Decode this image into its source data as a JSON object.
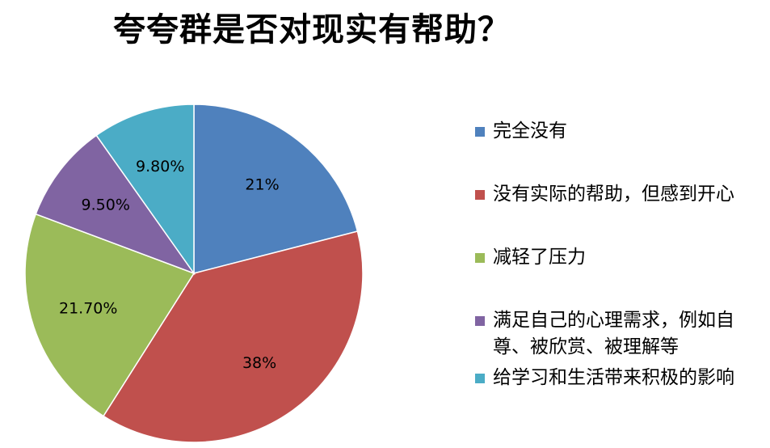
{
  "title": "夸夸群是否对现实有帮助？",
  "chart_data": {
    "type": "pie",
    "title": "夸夸群是否对现实有帮助？",
    "legend_position": "right",
    "slices": [
      {
        "label": "完全没有",
        "value": 21,
        "display": "21%",
        "color": "#4F81BD"
      },
      {
        "label": "没有实际的帮助，但感到开心",
        "value": 38,
        "display": "38%",
        "color": "#C0504D"
      },
      {
        "label": "减轻了压力",
        "value": 21.7,
        "display": "21.70%",
        "color": "#9BBB59"
      },
      {
        "label": "满足自己的心理需求，例如自尊、被欣赏、被理解等",
        "value": 9.5,
        "display": "9.50%",
        "color": "#8064A2"
      },
      {
        "label": "给学习和生活带来积极的影响",
        "value": 9.8,
        "display": "9.80%",
        "color": "#4BACC6"
      }
    ]
  }
}
